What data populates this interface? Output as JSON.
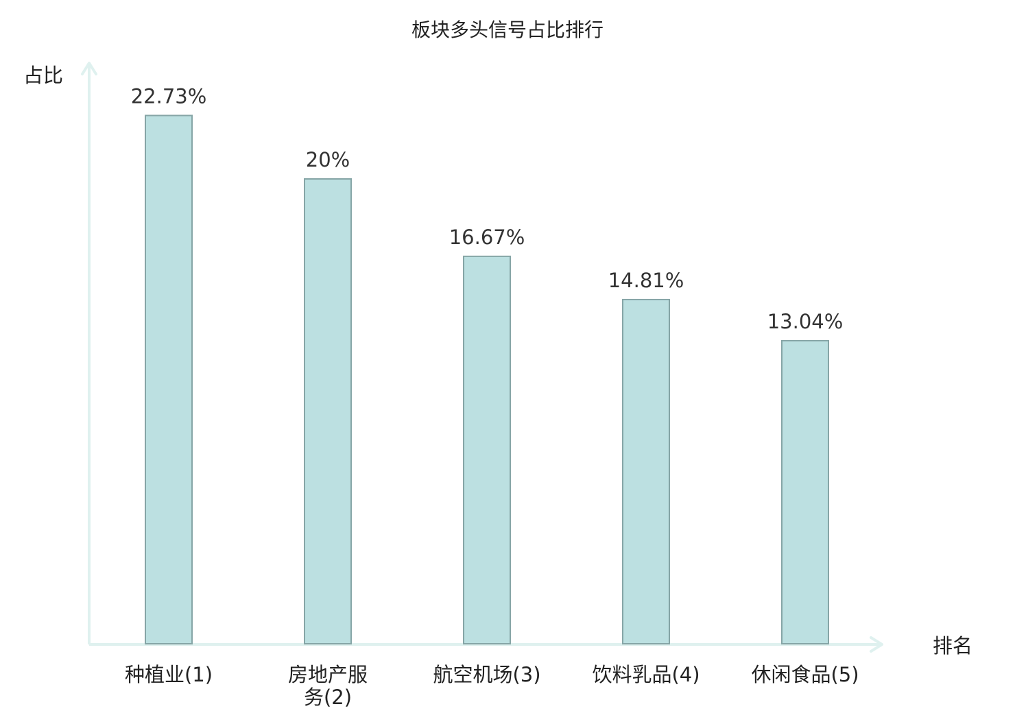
{
  "chart_data": {
    "type": "bar",
    "title": "板块多头信号占比排行",
    "xlabel": "排名",
    "ylabel": "占比",
    "categories": [
      [
        "种植业(1)"
      ],
      [
        "房地产服",
        "务(2)"
      ],
      [
        "航空机场(3)"
      ],
      [
        "饮料乳品(4)"
      ],
      [
        "休闲食品(5)"
      ]
    ],
    "values": [
      22.73,
      20,
      16.67,
      14.81,
      13.04
    ],
    "value_labels": [
      "22.73%",
      "20%",
      "16.67%",
      "14.81%",
      "13.04%"
    ],
    "highlight_index": 1,
    "ylim": [
      0,
      25
    ],
    "grid": false,
    "colors": {
      "bar_fill": "#bce0e1",
      "bar_stroke": "#86a5a6",
      "axis": "#dff1ef",
      "highlight_label": "#e0141b",
      "label": "#222222"
    }
  }
}
